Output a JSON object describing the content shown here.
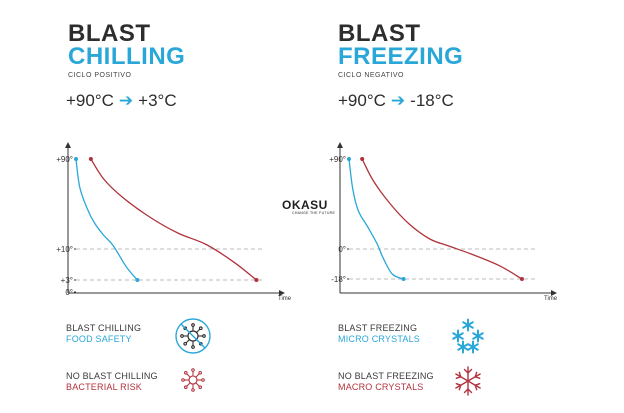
{
  "colors": {
    "blue": "#2aa7d9",
    "red": "#b0323c",
    "axis": "#333333",
    "grid": "#bdbdbd"
  },
  "chilling": {
    "title_line1": "BLAST",
    "title_line2": "CHILLING",
    "subtitle": "CICLO POSITIVO",
    "temp_from": "+90°C",
    "temp_to": "+3°C",
    "legend": {
      "with_label": "BLAST CHILLING",
      "with_result": "FOOD SAFETY",
      "with_icon": "bacteria-crossed-icon",
      "without_label": "NO BLAST CHILLING",
      "without_result": "BACTERIAL RISK",
      "without_icon": "bacteria-icon"
    }
  },
  "freezing": {
    "title_line1": "BLAST",
    "title_line2": "FREEZING",
    "subtitle": "CICLO NEGATIVO",
    "temp_from": "+90°C",
    "temp_to": "-18°C",
    "legend": {
      "with_label": "BLAST FREEZING",
      "with_result": "MICRO CRYSTALS",
      "with_icon": "micro-crystals-icon",
      "without_label": "NO BLAST FREEZING",
      "without_result": "MACRO CRYSTALS",
      "without_icon": "snowflake-icon"
    }
  },
  "logo": {
    "name": "OKASU",
    "tagline": "CHANGE THE FUTURE"
  },
  "chart_data": [
    {
      "type": "line",
      "xlabel": "Time",
      "ylabel": "",
      "y_ticks": [
        {
          "value": 90,
          "label": "+90°"
        },
        {
          "value": 10,
          "label": "+10°"
        },
        {
          "value": 3,
          "label": "+3°"
        },
        {
          "value": 0,
          "label": "0°"
        }
      ],
      "ylim": [
        0,
        90
      ],
      "xlim": [
        0,
        100
      ],
      "reference_lines": [
        10,
        3
      ],
      "series": [
        {
          "color": "#2aa7d9",
          "x": [
            0,
            2,
            6,
            10,
            15,
            20,
            27,
            33
          ],
          "y": [
            90,
            65,
            46,
            33,
            22,
            13,
            6,
            3
          ]
        },
        {
          "color": "#b0323c",
          "x": [
            8,
            15,
            25,
            40,
            55,
            70,
            85,
            97
          ],
          "y": [
            90,
            72,
            56,
            38,
            24,
            14,
            7,
            3
          ]
        }
      ]
    },
    {
      "type": "line",
      "xlabel": "Time",
      "ylabel": "",
      "y_ticks": [
        {
          "value": 90,
          "label": "+90°"
        },
        {
          "value": 0,
          "label": "0°"
        },
        {
          "value": -18,
          "label": "-18°"
        }
      ],
      "ylim": [
        -18,
        90
      ],
      "xlim": [
        0,
        100
      ],
      "reference_lines": [
        0,
        -18
      ],
      "series": [
        {
          "color": "#2aa7d9",
          "x": [
            0,
            2,
            5,
            10,
            15,
            18,
            23,
            29
          ],
          "y": [
            90,
            60,
            38,
            22,
            5,
            -5,
            -15,
            -18
          ]
        },
        {
          "color": "#b0323c",
          "x": [
            7,
            13,
            22,
            32,
            43,
            53,
            65,
            80,
            92
          ],
          "y": [
            90,
            68,
            45,
            25,
            10,
            3,
            -3,
            -10,
            -18
          ]
        }
      ]
    }
  ]
}
